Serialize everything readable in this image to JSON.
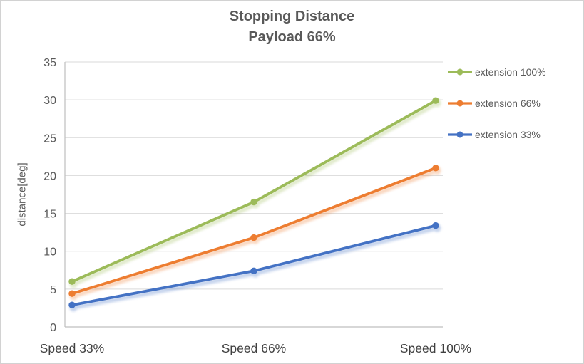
{
  "title": {
    "line1": "Stopping Distance",
    "line2": "Payload 66%"
  },
  "chart_data": {
    "type": "line",
    "title": "Stopping Distance Payload 66%",
    "categories": [
      "Speed 33%",
      "Speed 66%",
      "Speed 100%"
    ],
    "series": [
      {
        "name": "extension 100%",
        "color": "#9CBB59",
        "values": [
          6.0,
          16.5,
          29.9
        ]
      },
      {
        "name": "extension 66%",
        "color": "#ED7D31",
        "values": [
          4.4,
          11.8,
          21.0
        ]
      },
      {
        "name": "extension 33%",
        "color": "#4472C4",
        "values": [
          2.9,
          7.4,
          13.4
        ]
      }
    ],
    "xlabel": "",
    "ylabel": "distance[deg]",
    "ylim": [
      0,
      35
    ],
    "ytick_step": 5,
    "grid": true,
    "legend_position": "right",
    "colors": {
      "grid": "#D9D9D9",
      "axis": "#BFBFBF",
      "text": "#595959",
      "xtext": "#404040"
    }
  }
}
